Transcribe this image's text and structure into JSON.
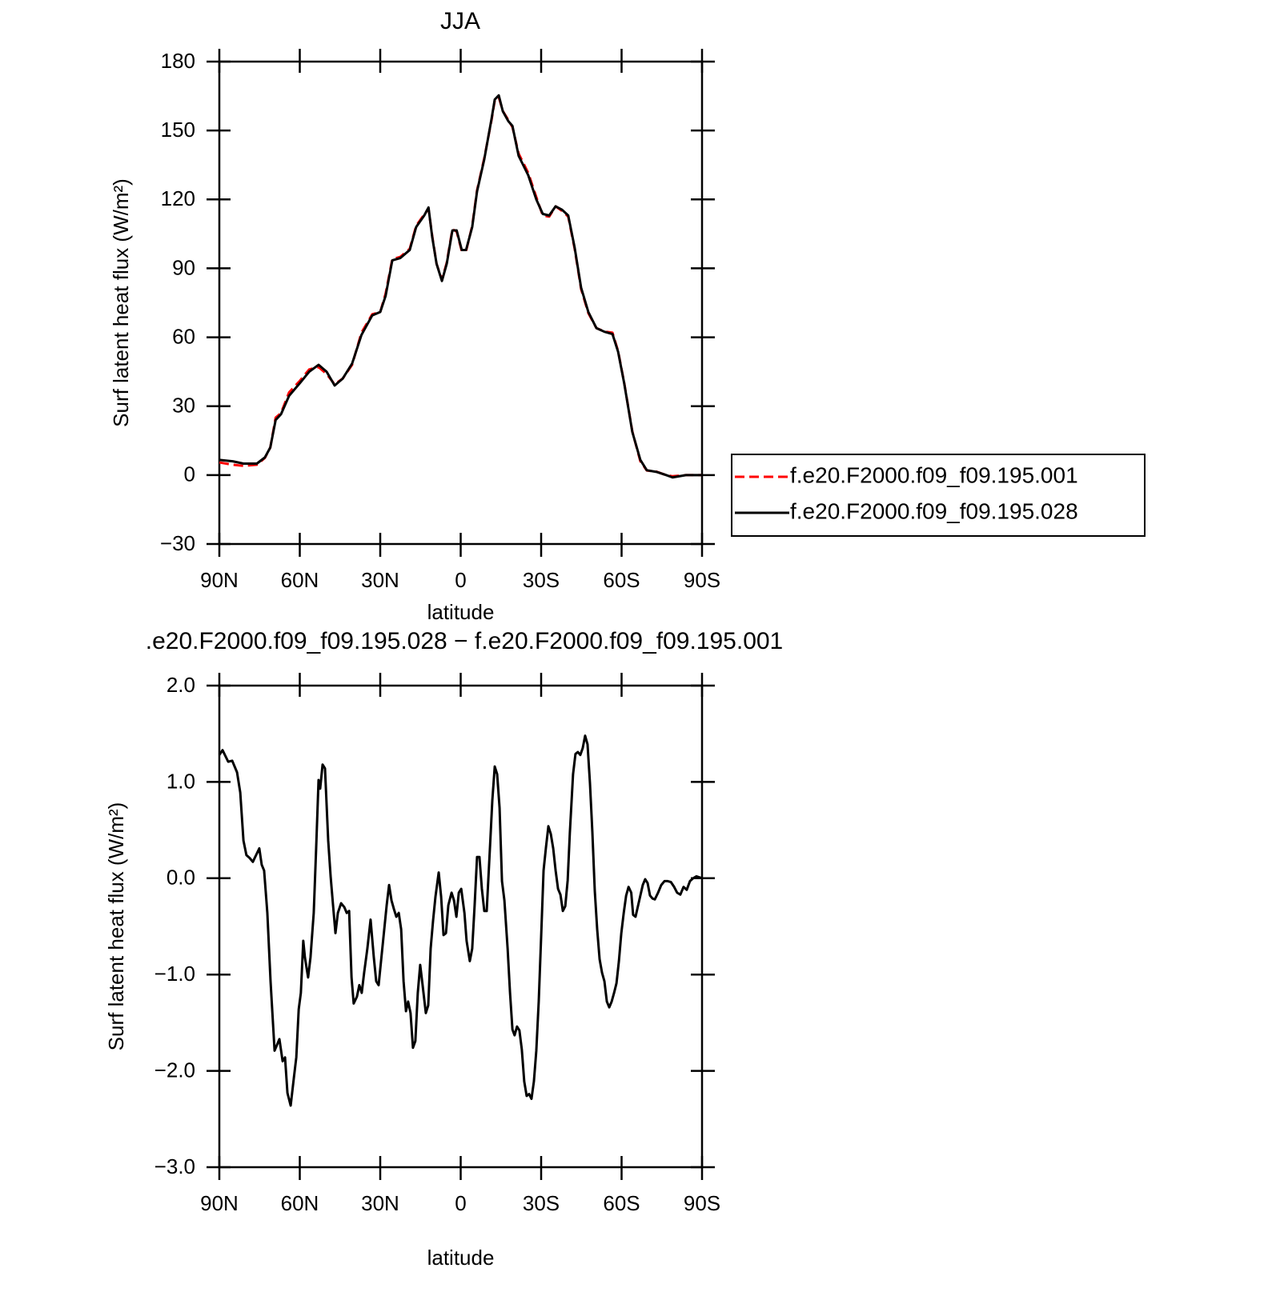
{
  "chart_data": [
    {
      "type": "line",
      "title": "JJA",
      "xlabel": "latitude",
      "ylabel": "Surf latent heat flux (W/m²)",
      "xlim": [
        90,
        -90
      ],
      "xticks": [
        {
          "value": 90,
          "label": "90N"
        },
        {
          "value": 60,
          "label": "60N"
        },
        {
          "value": 30,
          "label": "30N"
        },
        0,
        {
          "value": -30,
          "label": "30S"
        },
        {
          "value": -60,
          "label": "60S"
        },
        {
          "value": -90,
          "label": "90S"
        }
      ],
      "ylim": [
        -30,
        180
      ],
      "yticks": [
        {
          "value": -30,
          "label": "−30"
        },
        0,
        30,
        60,
        90,
        120,
        150,
        180
      ],
      "grid": false,
      "legend": "right",
      "x": [
        90,
        85,
        81,
        76,
        73,
        71,
        69,
        67,
        64,
        60,
        56.5,
        53,
        50,
        47,
        44,
        40.5,
        37,
        33,
        30,
        28,
        25.5,
        22.5,
        19,
        16.6,
        13.6,
        12,
        10.6,
        9,
        7,
        5.2,
        3.1,
        1.5,
        -0.4,
        -2,
        -4.3,
        -6.1,
        -8.8,
        -11.5,
        -12.7,
        -14.2,
        -15.7,
        -17.8,
        -19.3,
        -21.6,
        -25.2,
        -28.2,
        -30.6,
        -33,
        -35.4,
        -37.8,
        -40.1,
        -42.5,
        -44.9,
        -47.6,
        -50.6,
        -53.6,
        -56.6,
        -58.7,
        -61,
        -64,
        -67,
        -69.4,
        -73,
        -76.6,
        -79,
        -84,
        -90
      ],
      "series": [
        {
          "name": "f.e20.F2000.f09_f09.195.001",
          "color": "#ff0000",
          "linestyle": "dashed",
          "values": [
            5.5,
            4.5,
            4,
            4.5,
            7.5,
            12,
            25,
            27,
            36,
            41,
            46,
            47,
            44,
            39.5,
            42,
            48,
            62,
            70,
            71,
            79,
            94,
            95,
            98.5,
            108.5,
            113.5,
            116,
            104,
            92,
            85,
            92.5,
            107,
            106,
            97.5,
            97.5,
            108.5,
            124,
            138,
            154.5,
            163,
            164.5,
            158.5,
            154.5,
            151.5,
            140,
            131.5,
            121,
            113,
            112.5,
            117,
            115,
            112.5,
            98.5,
            81,
            70.5,
            64,
            62.5,
            62,
            54,
            40,
            19,
            6,
            2,
            1.5,
            0,
            -0.5,
            0,
            0
          ]
        },
        {
          "name": "f.e20.F2000.f09_f09.195.028",
          "color": "#000000",
          "linestyle": "solid",
          "values": [
            6.6,
            6,
            5,
            5,
            7.7,
            12,
            24,
            26.5,
            34.5,
            40,
            45,
            48,
            45,
            39,
            42,
            48.5,
            61,
            69.5,
            71,
            78,
            93.5,
            94.5,
            98,
            108,
            113,
            116.5,
            103.5,
            92,
            84.5,
            92,
            106.5,
            106.5,
            98,
            98,
            108,
            123.5,
            137.5,
            155,
            163.5,
            165.3,
            158.4,
            154,
            152,
            139,
            130.5,
            120,
            113.7,
            113,
            117,
            115.5,
            113,
            99,
            81.6,
            71,
            64,
            62.4,
            61.4,
            53.7,
            39.8,
            18.8,
            6.6,
            2.1,
            1.4,
            0,
            -1,
            0,
            0
          ]
        }
      ]
    },
    {
      "type": "line",
      "title": ".e20.F2000.f09_f09.195.028 − f.e20.F2000.f09_f09.195.001",
      "xlabel": "latitude",
      "ylabel": "Surf latent heat flux (W/m²)",
      "xlim": [
        90,
        -90
      ],
      "xticks": [
        {
          "value": 90,
          "label": "90N"
        },
        {
          "value": 60,
          "label": "60N"
        },
        {
          "value": 30,
          "label": "30N"
        },
        0,
        {
          "value": -30,
          "label": "30S"
        },
        {
          "value": -60,
          "label": "60S"
        },
        {
          "value": -90,
          "label": "90S"
        }
      ],
      "ylim": [
        -3,
        2
      ],
      "yticks": [
        {
          "value": -3,
          "label": "−3.0"
        },
        {
          "value": -2,
          "label": "−2.0"
        },
        {
          "value": -1,
          "label": "−1.0"
        },
        {
          "value": 0,
          "label": "0.0"
        },
        {
          "value": 1,
          "label": "1.0"
        },
        {
          "value": 2,
          "label": "2.0"
        }
      ],
      "grid": false,
      "x": [
        90,
        88.8,
        86.7,
        85.2,
        83.4,
        82.2,
        81,
        79.9,
        78.7,
        77.5,
        76.3,
        75.1,
        74.2,
        73.3,
        72.1,
        70.9,
        69.4,
        68.5,
        67.6,
        66.4,
        65.5,
        64.6,
        63.4,
        62.2,
        61.3,
        60.4,
        59.6,
        58.7,
        58.1,
        56.9,
        56,
        54.8,
        53.9,
        53,
        52.4,
        51.5,
        50.6,
        49.4,
        48.5,
        47.6,
        46.7,
        45.8,
        44.6,
        43.4,
        42.5,
        41.6,
        40.7,
        39.9,
        38.7,
        37.8,
        36.9,
        36,
        34.8,
        33.6,
        32.4,
        31.5,
        30.6,
        29.7,
        28.5,
        27.6,
        26.7,
        25.8,
        24.9,
        24,
        23.1,
        22.2,
        21.3,
        20.4,
        19.6,
        18.7,
        17.8,
        16.9,
        16,
        15.1,
        14.2,
        13,
        12.1,
        11.2,
        10.3,
        9.4,
        8.2,
        7.3,
        6.4,
        5.5,
        4.6,
        3.4,
        2.5,
        1.6,
        0.7,
        -0.2,
        -1.4,
        -2.2,
        -3.4,
        -4.3,
        -5.2,
        -6.1,
        -7,
        -7.9,
        -8.8,
        -9.7,
        -10.9,
        -11.8,
        -12.7,
        -13.6,
        -14.5,
        -15.4,
        -16.3,
        -17.5,
        -18.4,
        -19.3,
        -20.1,
        -21,
        -21.9,
        -22.8,
        -23.7,
        -24.6,
        -25.5,
        -26.4,
        -27.3,
        -28.2,
        -29.1,
        -30,
        -30.9,
        -31.8,
        -32.7,
        -33.6,
        -34.5,
        -35.4,
        -36.3,
        -37.2,
        -38.1,
        -39,
        -39.9,
        -40.7,
        -41.9,
        -42.8,
        -43.7,
        -44.6,
        -45.5,
        -46.4,
        -47.3,
        -48.2,
        -49.1,
        -50,
        -50.9,
        -51.8,
        -52.7,
        -53.6,
        -54.5,
        -55.4,
        -56.3,
        -57.2,
        -58.1,
        -59,
        -59.9,
        -60.8,
        -61.7,
        -62.6,
        -63.6,
        -64.3,
        -65.2,
        -66.1,
        -67,
        -67.9,
        -68.8,
        -69.7,
        -70.6,
        -71.5,
        -72.4,
        -73.6,
        -74.8,
        -76,
        -77.2,
        -78.4,
        -79.6,
        -80.7,
        -81.9,
        -83.1,
        -84.3,
        -85.5,
        -86.7,
        -87.9,
        -90
      ],
      "series": [
        {
          "color": "#000000",
          "linestyle": "solid",
          "values": [
            1.28,
            1.33,
            1.21,
            1.22,
            1.1,
            0.89,
            0.39,
            0.24,
            0.21,
            0.17,
            0.24,
            0.31,
            0.14,
            0.08,
            -0.36,
            -1.07,
            -1.79,
            -1.73,
            -1.67,
            -1.9,
            -1.86,
            -2.23,
            -2.36,
            -2.07,
            -1.86,
            -1.36,
            -1.19,
            -0.65,
            -0.82,
            -1.03,
            -0.82,
            -0.36,
            0.31,
            1.02,
            0.93,
            1.18,
            1.14,
            0.39,
            0.02,
            -0.28,
            -0.57,
            -0.36,
            -0.26,
            -0.3,
            -0.36,
            -0.34,
            -1.03,
            -1.3,
            -1.23,
            -1.11,
            -1.19,
            -0.98,
            -0.73,
            -0.43,
            -0.82,
            -1.07,
            -1.11,
            -0.86,
            -0.53,
            -0.28,
            -0.07,
            -0.23,
            -0.32,
            -0.4,
            -0.36,
            -0.53,
            -1.07,
            -1.38,
            -1.28,
            -1.4,
            -1.76,
            -1.69,
            -1.19,
            -0.9,
            -1.11,
            -1.4,
            -1.32,
            -0.73,
            -0.44,
            -0.19,
            0.06,
            -0.19,
            -0.59,
            -0.57,
            -0.28,
            -0.15,
            -0.23,
            -0.4,
            -0.15,
            -0.11,
            -0.36,
            -0.65,
            -0.86,
            -0.73,
            -0.28,
            0.22,
            0.22,
            -0.11,
            -0.34,
            -0.34,
            0.31,
            0.81,
            1.16,
            1.08,
            0.73,
            -0.03,
            -0.23,
            -0.73,
            -1.19,
            -1.57,
            -1.63,
            -1.54,
            -1.58,
            -1.78,
            -2.11,
            -2.26,
            -2.24,
            -2.29,
            -2.11,
            -1.79,
            -1.28,
            -0.61,
            0.08,
            0.32,
            0.54,
            0.46,
            0.31,
            0.08,
            -0.11,
            -0.17,
            -0.34,
            -0.29,
            -0.02,
            0.47,
            1.08,
            1.29,
            1.31,
            1.28,
            1.35,
            1.48,
            1.39,
            0.99,
            0.48,
            -0.13,
            -0.53,
            -0.84,
            -0.98,
            -1.07,
            -1.28,
            -1.34,
            -1.28,
            -1.19,
            -1.09,
            -0.86,
            -0.57,
            -0.36,
            -0.18,
            -0.09,
            -0.15,
            -0.38,
            -0.4,
            -0.29,
            -0.18,
            -0.07,
            -0.01,
            -0.05,
            -0.18,
            -0.21,
            -0.22,
            -0.15,
            -0.07,
            -0.03,
            -0.03,
            -0.04,
            -0.09,
            -0.15,
            -0.17,
            -0.09,
            -0.12,
            -0.03,
            0,
            0.02,
            0
          ]
        }
      ]
    }
  ]
}
